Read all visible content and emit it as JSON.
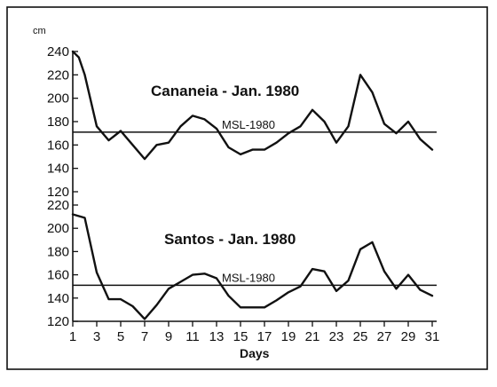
{
  "chart_data": [
    {
      "type": "line",
      "title": "Cananeia - Jan. 1980",
      "ylabel": "cm",
      "xlabel": "",
      "ylim": [
        120,
        240
      ],
      "yticks": [
        120,
        140,
        160,
        180,
        200,
        220,
        240
      ],
      "reference_line": {
        "label": "MSL-1980",
        "value": 171
      },
      "series": [
        {
          "x": [
            1,
            1.5,
            2,
            3,
            4,
            5,
            6,
            7,
            8,
            9,
            10,
            11,
            12,
            13,
            14,
            15,
            16,
            17,
            18,
            19,
            20,
            21,
            22,
            23,
            24,
            25,
            26,
            27,
            28,
            29,
            30,
            31
          ],
          "values": [
            240,
            235,
            220,
            176,
            164,
            172,
            160,
            148,
            160,
            162,
            176,
            185,
            182,
            174,
            158,
            152,
            156,
            156,
            162,
            170,
            176,
            190,
            180,
            162,
            176,
            220,
            205,
            178,
            170,
            180,
            165,
            156
          ]
        }
      ]
    },
    {
      "type": "line",
      "title": "Santos - Jan. 1980",
      "ylabel": "",
      "xlabel": "Days",
      "ylim": [
        120,
        220
      ],
      "yticks": [
        120,
        140,
        160,
        180,
        200,
        220
      ],
      "xticks": [
        1,
        3,
        5,
        7,
        9,
        11,
        13,
        15,
        17,
        19,
        21,
        23,
        25,
        27,
        29,
        31
      ],
      "reference_line": {
        "label": "MSL-1980",
        "value": 151
      },
      "series": [
        {
          "x": [
            1,
            2,
            3,
            4,
            5,
            6,
            7,
            8,
            9,
            10,
            11,
            12,
            13,
            14,
            15,
            16,
            17,
            18,
            19,
            20,
            21,
            22,
            23,
            24,
            25,
            26,
            27,
            28,
            29,
            30,
            31
          ],
          "values": [
            212,
            209,
            162,
            139,
            139,
            133,
            122,
            134,
            148,
            154,
            160,
            161,
            157,
            142,
            132,
            132,
            132,
            138,
            145,
            150,
            165,
            163,
            146,
            155,
            182,
            188,
            163,
            148,
            160,
            147,
            142
          ]
        }
      ]
    }
  ]
}
